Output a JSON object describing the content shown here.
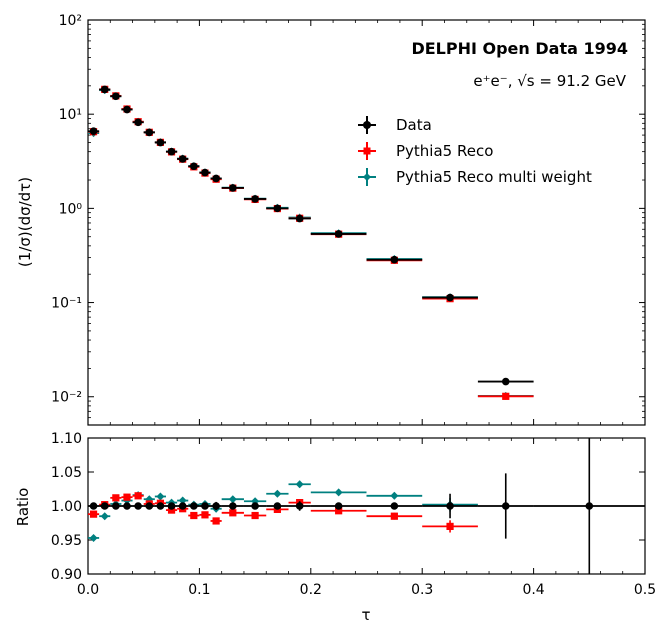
{
  "chart_data": {
    "type": "scatter",
    "title": "DELPHI Open Data 1994",
    "subtitle": "e⁺e⁻, √s = 91.2 GeV",
    "xlabel": "τ",
    "ylabel": "(1/σ)(dσ/dτ)",
    "ratio_ylabel": "Ratio",
    "xlim": [
      0.0,
      0.5
    ],
    "ylim": [
      0.005,
      100
    ],
    "yscale": "log",
    "ratio_ylim": [
      0.9,
      1.1
    ],
    "x_ticks": [
      "0.0",
      "0.1",
      "0.2",
      "0.3",
      "0.4",
      "0.5"
    ],
    "y_ticks": [
      "10⁻²",
      "10⁻¹",
      "10⁰",
      "10¹",
      "10²"
    ],
    "ratio_y_ticks": [
      "0.90",
      "0.95",
      "1.00",
      "1.05",
      "1.10"
    ],
    "legend_position": "upper-right",
    "bins": {
      "low": [
        0.0,
        0.01,
        0.02,
        0.03,
        0.04,
        0.05,
        0.06,
        0.07,
        0.08,
        0.09,
        0.1,
        0.11,
        0.12,
        0.14,
        0.16,
        0.18,
        0.2,
        0.25,
        0.3,
        0.35,
        0.4
      ],
      "high": [
        0.01,
        0.02,
        0.03,
        0.04,
        0.05,
        0.06,
        0.07,
        0.08,
        0.09,
        0.1,
        0.11,
        0.12,
        0.14,
        0.16,
        0.18,
        0.2,
        0.25,
        0.3,
        0.35,
        0.4,
        0.5
      ]
    },
    "series": [
      {
        "name": "Data",
        "color": "#000000",
        "marker": "circle",
        "values": [
          6.6,
          18.3,
          15.5,
          11.2,
          8.2,
          6.4,
          5.0,
          4.0,
          3.35,
          2.8,
          2.4,
          2.08,
          1.65,
          1.26,
          1.0,
          0.78,
          0.535,
          0.285,
          0.113,
          0.0145,
          null
        ],
        "ratio": [
          1.0,
          1.0,
          1.0,
          1.0,
          1.0,
          1.0,
          1.0,
          1.0,
          1.0,
          1.0,
          1.0,
          1.0,
          1.0,
          1.0,
          1.0,
          1.0,
          1.0,
          1.0,
          1.0,
          1.0,
          1.0
        ],
        "ratio_err": [
          0.003,
          0.003,
          0.003,
          0.003,
          0.003,
          0.003,
          0.003,
          0.003,
          0.003,
          0.003,
          0.004,
          0.006,
          0.003,
          0.004,
          0.004,
          0.007,
          0.004,
          0.005,
          0.018,
          0.048,
          0.1
        ]
      },
      {
        "name": "Pythia5 Reco",
        "color": "#ff0000",
        "marker": "square",
        "values": [
          6.52,
          18.35,
          15.65,
          11.35,
          8.32,
          6.42,
          5.02,
          3.98,
          3.33,
          2.76,
          2.37,
          2.04,
          1.64,
          1.245,
          0.995,
          0.785,
          0.532,
          0.281,
          0.11,
          0.0101,
          null
        ],
        "ratio": [
          0.988,
          1.002,
          1.012,
          1.013,
          1.015,
          1.003,
          1.004,
          0.994,
          0.996,
          0.986,
          0.987,
          0.978,
          0.99,
          0.986,
          0.995,
          1.005,
          0.993,
          0.985,
          0.97,
          null,
          null
        ],
        "ratio_err": [
          0.004,
          0.003,
          0.003,
          0.003,
          0.003,
          0.003,
          0.003,
          0.003,
          0.003,
          0.003,
          0.004,
          0.005,
          0.003,
          0.003,
          0.004,
          0.004,
          0.004,
          0.005,
          0.009,
          0.0,
          0.0
        ]
      },
      {
        "name": "Pythia5 Reco multi weight",
        "color": "#008080",
        "marker": "plus",
        "values": [
          6.3,
          18.0,
          15.5,
          11.3,
          8.3,
          6.45,
          5.05,
          4.02,
          3.38,
          2.81,
          2.41,
          2.07,
          1.66,
          1.27,
          1.015,
          0.8,
          0.545,
          0.29,
          0.114,
          0.0102,
          null
        ],
        "ratio": [
          0.953,
          0.985,
          1.003,
          1.008,
          1.016,
          1.01,
          1.014,
          1.005,
          1.008,
          1.002,
          1.003,
          0.996,
          1.01,
          1.007,
          1.018,
          1.032,
          1.02,
          1.015,
          1.002,
          null,
          null
        ],
        "ratio_err": [
          0.003,
          0.003,
          0.003,
          0.003,
          0.003,
          0.003,
          0.003,
          0.003,
          0.003,
          0.003,
          0.004,
          0.005,
          0.003,
          0.004,
          0.004,
          0.005,
          0.004,
          0.005,
          0.01,
          0.0,
          0.0
        ]
      }
    ]
  }
}
